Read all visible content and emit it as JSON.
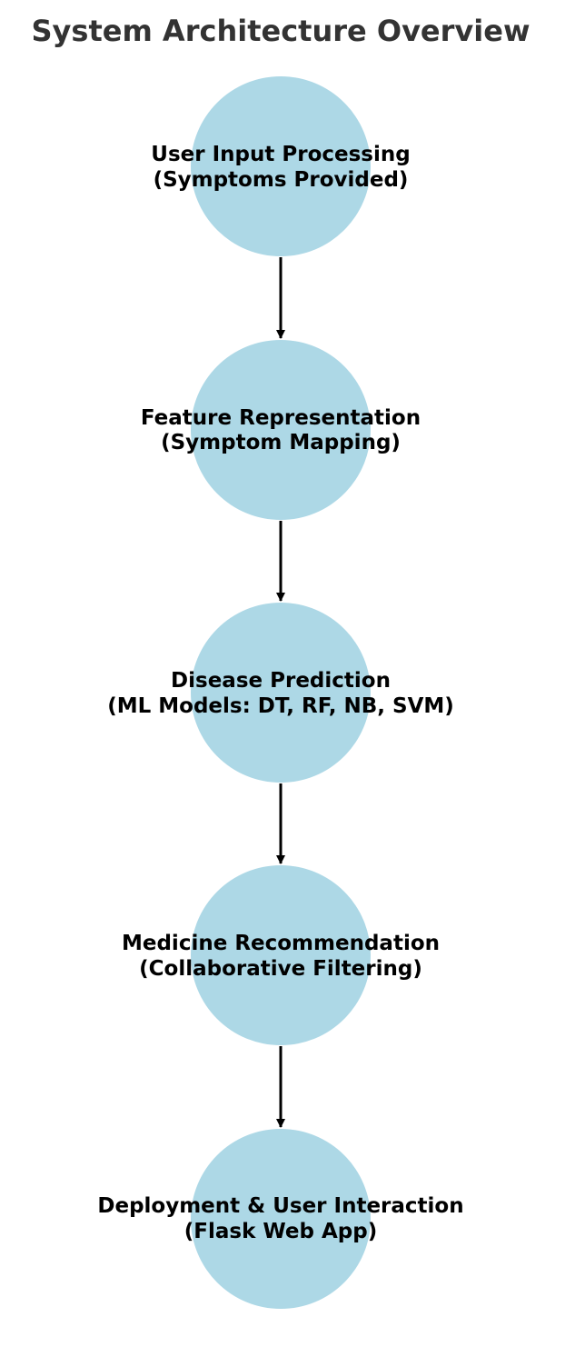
{
  "title": "System Architecture Overview",
  "colors": {
    "node_fill": "#add8e6",
    "arrow": "#000000",
    "title": "#333333",
    "label": "#000000"
  },
  "nodes": [
    {
      "line1": "User Input Processing",
      "line2": "(Symptoms Provided)"
    },
    {
      "line1": "Feature Representation",
      "line2": "(Symptom Mapping)"
    },
    {
      "line1": "Disease Prediction",
      "line2": "(ML Models: DT, RF, NB, SVM)"
    },
    {
      "line1": "Medicine Recommendation",
      "line2": "(Collaborative Filtering)"
    },
    {
      "line1": "Deployment & User Interaction",
      "line2": "(Flask Web App)"
    }
  ]
}
